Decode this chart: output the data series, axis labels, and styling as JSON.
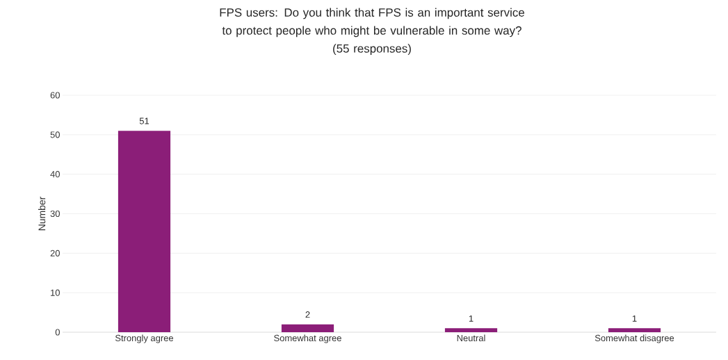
{
  "chart_data": {
    "type": "bar",
    "title": "FPS users: Do you think that FPS is an important service to protect people who might be vulnerable in some way?",
    "subtitle": "(55 responses)",
    "ylabel": "Number",
    "categories": [
      "Strongly agree",
      "Somewhat agree",
      "Neutral",
      "Somewhat disagree"
    ],
    "values": [
      51,
      2,
      1,
      1
    ],
    "color": "#8b1e78",
    "ylim": [
      0,
      60
    ],
    "yticks": [
      0,
      10,
      20,
      30,
      40,
      50,
      60
    ],
    "grid": "y",
    "data_labels": true
  }
}
